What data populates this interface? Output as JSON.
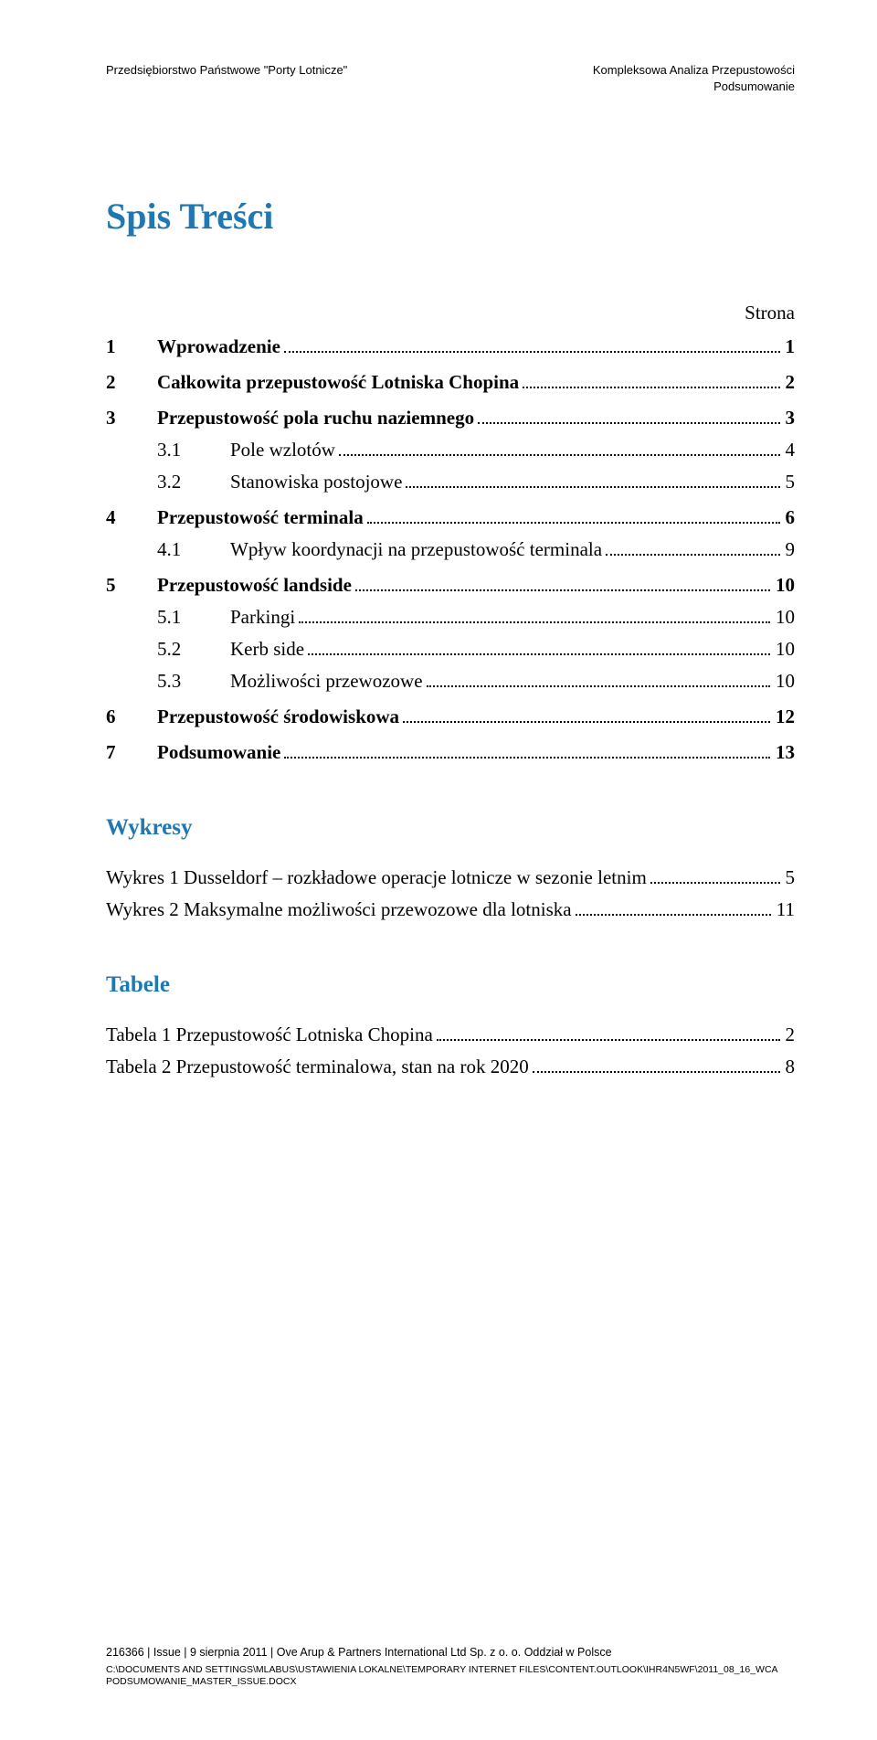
{
  "header": {
    "left": "Przedsiębiorstwo Państwowe \"Porty Lotnicze\"",
    "right_line1": "Kompleksowa Analiza Przepustowości",
    "right_line2": "Podsumowanie"
  },
  "title": "Spis Treści",
  "strona_label": "Strona",
  "toc": [
    {
      "num": "1",
      "label": "Wprowadzenie",
      "page": "1",
      "bold": true,
      "sub": []
    },
    {
      "num": "2",
      "label": "Całkowita przepustowość Lotniska Chopina",
      "page": "2",
      "bold": true,
      "sub": []
    },
    {
      "num": "3",
      "label": "Przepustowość pola ruchu naziemnego",
      "page": "3",
      "bold": true,
      "sub": [
        {
          "num": "3.1",
          "label": "Pole wzlotów",
          "page": "4"
        },
        {
          "num": "3.2",
          "label": "Stanowiska postojowe",
          "page": "5"
        }
      ]
    },
    {
      "num": "4",
      "label": "Przepustowość terminala",
      "page": "6",
      "bold": true,
      "sub": [
        {
          "num": "4.1",
          "label": "Wpływ koordynacji na przepustowość terminala",
          "page": "9"
        }
      ]
    },
    {
      "num": "5",
      "label": "Przepustowość landside",
      "page": "10",
      "bold": true,
      "sub": [
        {
          "num": "5.1",
          "label": "Parkingi",
          "page": "10"
        },
        {
          "num": "5.2",
          "label": "Kerb side",
          "page": "10"
        },
        {
          "num": "5.3",
          "label": "Możliwości przewozowe",
          "page": "10"
        }
      ]
    },
    {
      "num": "6",
      "label": "Przepustowość środowiskowa",
      "page": "12",
      "bold": true,
      "sub": []
    },
    {
      "num": "7",
      "label": "Podsumowanie",
      "page": "13",
      "bold": true,
      "sub": []
    }
  ],
  "wykresy": {
    "heading": "Wykresy",
    "items": [
      {
        "label": "Wykres 1 Dusseldorf – rozkładowe operacje lotnicze w sezonie letnim",
        "page": "5"
      },
      {
        "label": "Wykres 2 Maksymalne możliwości przewozowe dla lotniska",
        "page": "11"
      }
    ]
  },
  "tabele": {
    "heading": "Tabele",
    "items": [
      {
        "label": "Tabela 1 Przepustowość Lotniska Chopina",
        "page": "2"
      },
      {
        "label": "Tabela 2 Przepustowość terminalowa, stan na rok 2020",
        "page": "8"
      }
    ]
  },
  "footer": {
    "line1": "216366 | Issue | 9 sierpnia 2011 | Ove Arup & Partners International Ltd Sp. z o. o. Oddział w Polsce",
    "line2": "C:\\DOCUMENTS AND SETTINGS\\MLABUS\\USTAWIENIA LOKALNE\\TEMPORARY INTERNET FILES\\CONTENT.OUTLOOK\\IHR4N5WF\\2011_08_16_WCA PODSUMOWANIE_MASTER_ISSUE.DOCX"
  },
  "colors": {
    "heading_blue": "#1f77b4",
    "text": "#000000",
    "background": "#ffffff"
  }
}
